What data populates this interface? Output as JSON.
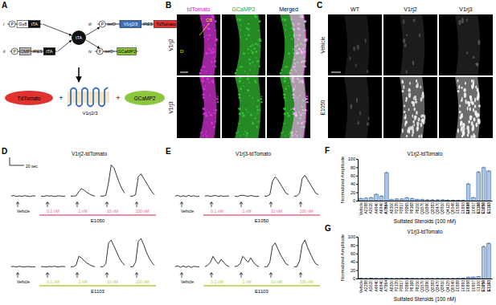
{
  "diagram": {
    "panel": "A",
    "constructs": [
      {
        "label": "i",
        "promoter": "P",
        "gene": "Gγ8",
        "driver": "tTA"
      },
      {
        "label": "ii",
        "promoter": "P",
        "gene": "OMP",
        "linker": "IRES",
        "driver": "tTA"
      },
      {
        "label": "iii",
        "promoter": "P",
        "operator": "tetO",
        "gene": "V1rj2/3",
        "linker": "IRES",
        "reporter": "TdTomato"
      },
      {
        "label": "iv",
        "promoter": "P",
        "operator": "tetO",
        "reporter": "GCaMP2"
      }
    ],
    "protein": "tTA",
    "products": [
      "TdTomato",
      "+",
      "V1rj2/3",
      "+",
      "GCaMP2"
    ]
  },
  "images_b": {
    "panel": "B",
    "columns": [
      "tdTomato",
      "GCaMP2",
      "Merged"
    ],
    "rows": [
      "V1rj2",
      "V1rj3"
    ],
    "annotations": [
      "CB",
      "D"
    ]
  },
  "images_c": {
    "panel": "C",
    "columns": [
      "WT",
      "V1rj2",
      "V1rj3"
    ],
    "rows": [
      "Vehicle",
      "E1050"
    ]
  },
  "chart_data": [
    {
      "type": "line",
      "panel": "D",
      "title": "V1rj2-tdTomato",
      "scale_bar": "20 sec",
      "ylim": [
        -2,
        24
      ],
      "categories": [
        "Vehicle",
        "0.1 nM",
        "1 nM",
        "10 nM",
        "100 nM"
      ],
      "rows": [
        {
          "name": "E1050",
          "color": "#e86a8a",
          "traces": [
            [
              0,
              0.4,
              -0.3,
              0.2,
              -0.2,
              0.3,
              0,
              -0.3,
              0.2,
              0
            ],
            [
              0,
              -0.2,
              0.3,
              0,
              0.2,
              -0.3,
              0.1,
              0.2,
              -0.1,
              0
            ],
            [
              0,
              0,
              0.2,
              3,
              5,
              4,
              2.5,
              1.5,
              0.5,
              0
            ],
            [
              0,
              0,
              0.5,
              9,
              21,
              19,
              14,
              9,
              5,
              2
            ],
            [
              0,
              0,
              1,
              13,
              15,
              12,
              9,
              6,
              3,
              1
            ]
          ]
        },
        {
          "name": "E1103",
          "color": "#b5cc3a",
          "traces": [
            [
              0,
              0.2,
              -0.2,
              0.3,
              0,
              -0.2,
              0.2,
              0,
              -0.1,
              0
            ],
            [
              0,
              0.1,
              -0.2,
              0.2,
              0,
              0.3,
              -0.1,
              0,
              0.2,
              0
            ],
            [
              0,
              0,
              1,
              7,
              6,
              4,
              2.5,
              1.5,
              0.5,
              0
            ],
            [
              0,
              0,
              2,
              16,
              18,
              14,
              10,
              6,
              3,
              1
            ],
            [
              0,
              0,
              3,
              17,
              19,
              15,
              10,
              6,
              3,
              1
            ]
          ]
        }
      ]
    },
    {
      "type": "line",
      "panel": "E",
      "title": "V1rj3-tdTomato",
      "ylim": [
        -2,
        24
      ],
      "categories": [
        "Vehicle",
        "0.1 nM",
        "1 nM",
        "10 nM",
        "100 nM"
      ],
      "rows": [
        {
          "name": "E1050",
          "color": "#e86a8a",
          "traces": [
            [
              0,
              0.5,
              -0.4,
              0.3,
              -0.3,
              0.5,
              -0.2,
              0.3,
              -0.4,
              0
            ],
            [
              0,
              0.3,
              -0.3,
              0.2,
              0.4,
              -0.2,
              0.3,
              -0.3,
              0.1,
              0
            ],
            [
              0,
              -0.3,
              0.4,
              0.6,
              0.2,
              -0.2,
              0.4,
              0,
              -0.3,
              0
            ],
            [
              0,
              0,
              1,
              10,
              13,
              11,
              8,
              5,
              2,
              1
            ],
            [
              0,
              0,
              2,
              12,
              14,
              11,
              8,
              5,
              2,
              1
            ]
          ]
        },
        {
          "name": "E1103",
          "color": "#b5cc3a",
          "traces": [
            [
              0,
              0.6,
              -0.4,
              0.5,
              -0.3,
              0.4,
              -0.5,
              0.3,
              0,
              0
            ],
            [
              0,
              1,
              3,
              7,
              4,
              2,
              5,
              3,
              1,
              0
            ],
            [
              0,
              0.5,
              2,
              7,
              5,
              3,
              6,
              3,
              1,
              0
            ],
            [
              0,
              0,
              3,
              14,
              16,
              12,
              8,
              5,
              2,
              1
            ],
            [
              0,
              0,
              4,
              15,
              18,
              13,
              9,
              5,
              2,
              1
            ]
          ]
        }
      ]
    },
    {
      "type": "bar",
      "panel": "F",
      "title": "V1rj2-tdTomato",
      "y_label": "Normalized Amplitude",
      "x_label": "Sulfated Steroids (100 nM)",
      "categories": [
        "Vehicle",
        "A2288",
        "A3020",
        "A4940",
        "A6940",
        "A7864",
        "A8300",
        "P2135",
        "P3817",
        "P3865",
        "P8168",
        "P8200",
        "Q1570",
        "Q1890",
        "Q3383",
        "Q3470",
        "Q3910",
        "Q4125",
        "Q5545",
        "E0588",
        "E0893",
        "E0898",
        "E0957",
        "E1100",
        "E1050",
        "E1103"
      ],
      "values": [
        5,
        6,
        7,
        15,
        11,
        67,
        3,
        4,
        4,
        7,
        5,
        3,
        3,
        2,
        2,
        2,
        2,
        1.5,
        1,
        1,
        1,
        40,
        7,
        68,
        79,
        71
      ],
      "errors": [
        1,
        1,
        1,
        1.5,
        1,
        2,
        0.5,
        0.5,
        0.5,
        1,
        0.8,
        0.5,
        0.5,
        0.5,
        0.5,
        0.5,
        0.5,
        0.5,
        0.3,
        0.3,
        0.3,
        2,
        1,
        2,
        1.5,
        1.5
      ],
      "ylim": [
        0,
        100
      ],
      "yticks": [
        0,
        20,
        40,
        60,
        80,
        100
      ],
      "color": "#a9c6e6"
    },
    {
      "type": "bar",
      "panel": "G",
      "title": "V1rj3-tdTomato",
      "y_label": "Normalized Amplitude",
      "x_label": "Sulfated Steroids (100 nM)",
      "categories": [
        "Vehicle",
        "A2288",
        "A3020",
        "A4940",
        "A6940",
        "A7864",
        "A8300",
        "P2135",
        "P3817",
        "P3865",
        "P8168",
        "P8200",
        "Q1570",
        "Q1890",
        "Q3383",
        "Q3470",
        "Q3910",
        "Q4125",
        "Q5545",
        "E0588",
        "E0893",
        "E0898",
        "E0957",
        "E1100",
        "E1050",
        "E1103"
      ],
      "values": [
        0.5,
        0.4,
        0.5,
        0.4,
        0.3,
        0.5,
        0.4,
        0.3,
        0.4,
        0.5,
        0.4,
        0.3,
        0.4,
        0.3,
        0.3,
        0.4,
        0.3,
        0.3,
        0.3,
        0.4,
        0.5,
        3,
        3.5,
        4.5,
        76,
        84
      ],
      "errors": [
        0.2,
        0.2,
        0.2,
        0.2,
        0.2,
        0.2,
        0.2,
        0.2,
        0.2,
        0.2,
        0.2,
        0.2,
        0.2,
        0.2,
        0.2,
        0.2,
        0.2,
        0.2,
        0.2,
        0.2,
        0.2,
        0.5,
        0.5,
        0.5,
        2,
        2
      ],
      "ylim": [
        0,
        100
      ],
      "yticks": [
        0,
        20,
        40,
        60,
        80,
        100
      ],
      "color": "#a9c6e6"
    }
  ]
}
